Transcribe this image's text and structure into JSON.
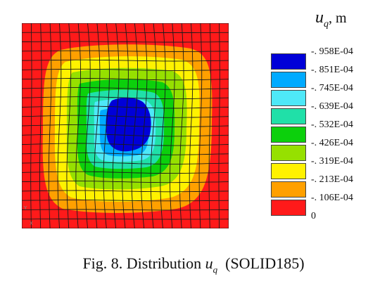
{
  "legend": {
    "symbol": "u",
    "subscript": "q",
    "unit": ", m",
    "levels": [
      "-. 958E-04",
      "-. 851E-04",
      "-. 745E-04",
      "-. 639E-04",
      "-. 532E-04",
      "-. 426E-04",
      "-. 319E-04",
      "-. 213E-04",
      "-. 106E-04",
      "0"
    ],
    "colors": [
      "#0000d8",
      "#00aaff",
      "#4ee8f8",
      "#20e0a8",
      "#0cd00c",
      "#96e000",
      "#fff200",
      "#ffa000",
      "#ff1a1a"
    ]
  },
  "axes_glyphs": {
    "y": "Y",
    "x": "X"
  },
  "caption": {
    "prefix": "Fig. 8. Distribution",
    "symbol": "u",
    "subscript": "q",
    "suffix": "(SOLID185)"
  }
}
